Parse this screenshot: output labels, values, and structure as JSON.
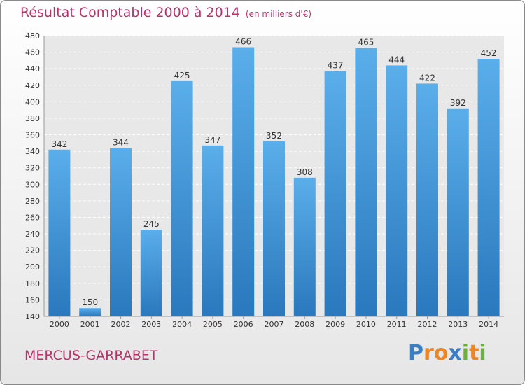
{
  "chart_data": {
    "type": "bar",
    "title": "Résultat Comptable 2000 à 2014",
    "subtitle": "(en milliers d'€)",
    "categories": [
      "2000",
      "2001",
      "2002",
      "2003",
      "2004",
      "2005",
      "2006",
      "2007",
      "2008",
      "2009",
      "2010",
      "2011",
      "2012",
      "2013",
      "2014"
    ],
    "values": [
      342,
      150,
      344,
      245,
      425,
      347,
      466,
      352,
      308,
      437,
      465,
      444,
      422,
      392,
      452
    ],
    "yticks": [
      "140",
      "160",
      "180",
      "200",
      "220",
      "240",
      "260",
      "280",
      "300",
      "320",
      "340",
      "360",
      "380",
      "400",
      "420",
      "440",
      "460",
      "480"
    ],
    "ylim": [
      140,
      480
    ],
    "grid": true,
    "bar_color": "#3d8fd6",
    "title_color": "#b8336a"
  },
  "footer": {
    "commune": "MERCUS-GARRABET",
    "logo": "Proxiti"
  }
}
